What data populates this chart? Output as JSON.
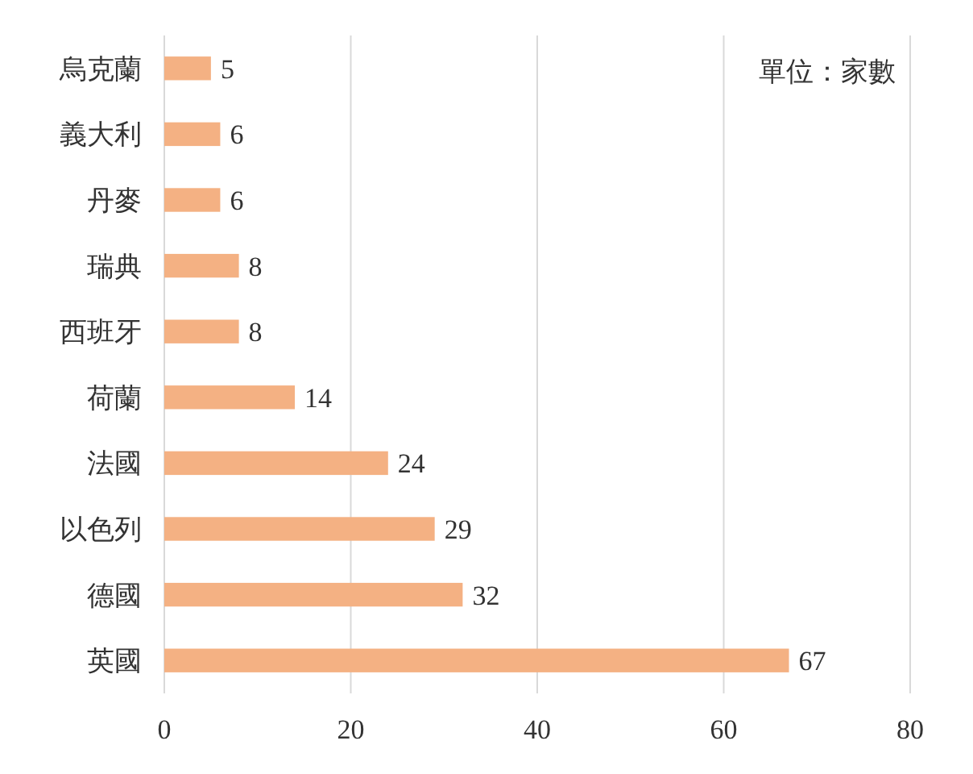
{
  "chart_data": {
    "type": "bar",
    "orientation": "horizontal",
    "categories": [
      "烏克蘭",
      "義大利",
      "丹麥",
      "瑞典",
      "西班牙",
      "荷蘭",
      "法國",
      "以色列",
      "德國",
      "英國"
    ],
    "values": [
      5,
      6,
      6,
      8,
      8,
      14,
      24,
      29,
      32,
      67
    ],
    "color": "#f4b183",
    "xlim": [
      0,
      80
    ],
    "xticks": [
      0,
      20,
      40,
      60,
      80
    ],
    "grid": "x",
    "data_labels": true,
    "annotations": [
      "單位：家數"
    ]
  }
}
